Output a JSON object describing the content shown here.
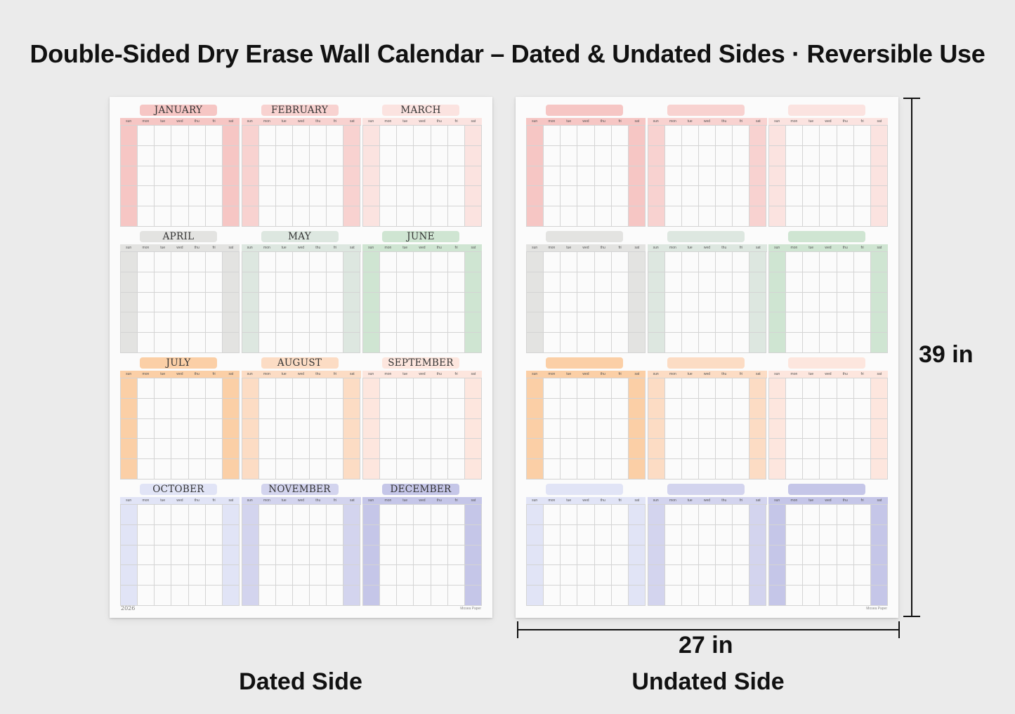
{
  "headline": "Double-Sided Dry Erase Wall Calendar – Dated & Undated Sides · Reversible Use",
  "days": [
    "sun",
    "mon",
    "tue",
    "wed",
    "thu",
    "fri",
    "sat"
  ],
  "year": "2026",
  "brand": "Mosea Paper",
  "months": [
    {
      "name": "JANUARY",
      "color": "#f6c6c4",
      "row": 0,
      "col": 0
    },
    {
      "name": "FEBRUARY",
      "color": "#f8d2d0",
      "row": 0,
      "col": 1
    },
    {
      "name": "MARCH",
      "color": "#fbe3e0",
      "row": 0,
      "col": 2
    },
    {
      "name": "APRIL",
      "color": "#e3e3e1",
      "row": 1,
      "col": 0
    },
    {
      "name": "MAY",
      "color": "#dde7e0",
      "row": 1,
      "col": 1
    },
    {
      "name": "JUNE",
      "color": "#cfe5d2",
      "row": 1,
      "col": 2
    },
    {
      "name": "JULY",
      "color": "#fbcfa6",
      "row": 2,
      "col": 0
    },
    {
      "name": "AUGUST",
      "color": "#fcdcc4",
      "row": 2,
      "col": 1
    },
    {
      "name": "SEPTEMBER",
      "color": "#fde6de",
      "row": 2,
      "col": 2
    },
    {
      "name": "OCTOBER",
      "color": "#e1e4f6",
      "row": 3,
      "col": 0
    },
    {
      "name": "NOVEMBER",
      "color": "#d3d4ee",
      "row": 3,
      "col": 1
    },
    {
      "name": "DECEMBER",
      "color": "#c5c6e8",
      "row": 3,
      "col": 2
    }
  ],
  "dimensions": {
    "height": "39 in",
    "width": "27 in"
  },
  "labels": {
    "dated": "Dated Side",
    "undated": "Undated Side"
  }
}
